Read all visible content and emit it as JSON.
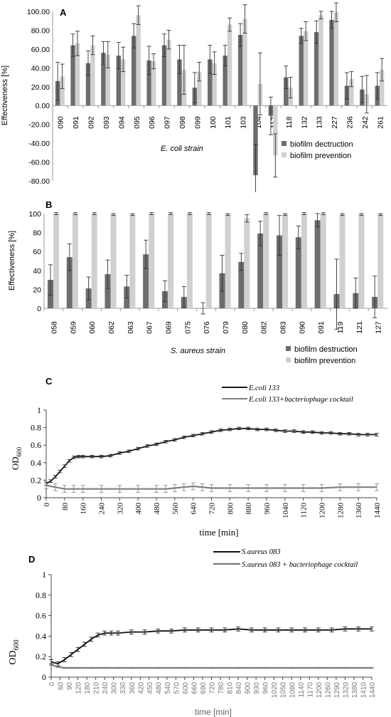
{
  "chart_data": [
    {
      "panel": "A",
      "type": "bar",
      "ylabel": "Effectiveness [%]",
      "xlabel": "E. coli  strain",
      "ylim": [
        -80,
        100
      ],
      "yticks": [
        "100.00",
        "80.00",
        "60.00",
        "40.00",
        "20.00",
        "0.00",
        "-20.00",
        "-40.00",
        "-60.00",
        "-80.00"
      ],
      "categories": [
        "090",
        "091",
        "092",
        "093",
        "094",
        "095",
        "096",
        "097",
        "098",
        "099",
        "100",
        "101",
        "103",
        "104",
        "117",
        "118",
        "132",
        "133",
        "227",
        "236",
        "242",
        "261"
      ],
      "series": [
        {
          "name": "biofilm dectruction",
          "color": "#6d6d6d",
          "values": [
            26,
            64,
            45,
            56,
            53,
            74,
            48,
            64,
            49,
            19,
            49,
            53,
            75,
            -74,
            -11,
            30,
            74,
            78,
            91,
            21,
            17,
            21
          ],
          "errors": [
            20,
            12,
            13,
            12,
            14,
            13,
            15,
            12,
            15,
            16,
            15,
            11,
            12,
            33,
            20,
            12,
            8,
            12,
            9,
            14,
            14,
            14
          ]
        },
        {
          "name": "biofilm prevention",
          "color": "#d0d0d0",
          "values": [
            31,
            66,
            64,
            54,
            49,
            96,
            47,
            70,
            38,
            36,
            45,
            86,
            92,
            23,
            -53,
            19,
            79,
            96,
            99,
            28,
            12,
            38
          ],
          "errors": [
            13,
            13,
            10,
            14,
            13,
            10,
            8,
            10,
            26,
            10,
            12,
            7,
            15,
            33,
            23,
            11,
            10,
            4,
            10,
            8,
            20,
            12
          ]
        }
      ]
    },
    {
      "panel": "B",
      "type": "bar",
      "ylabel": "Effectiveness [%]",
      "xlabel": "S. aureus strain",
      "ylim": [
        0,
        100
      ],
      "yticks": [
        "100",
        "80",
        "60",
        "40",
        "20",
        "0"
      ],
      "categories": [
        "058",
        "059",
        "060",
        "062",
        "063",
        "067",
        "069",
        "075",
        "076",
        "079",
        "080",
        "082",
        "083",
        "090",
        "091",
        "119",
        "121",
        "127"
      ],
      "series": [
        {
          "name": "biofilm destruction",
          "color": "#6d6d6d",
          "values": [
            30,
            54,
            21,
            36,
            23,
            57,
            18,
            12,
            0,
            37,
            49,
            79,
            77,
            75,
            93,
            15,
            16,
            12
          ],
          "errors": [
            16,
            14,
            12,
            15,
            12,
            15,
            11,
            11,
            6,
            19,
            9,
            13,
            21,
            12,
            7,
            37,
            16,
            22
          ]
        },
        {
          "name": "biofilm prevention",
          "color": "#d0d0d0",
          "values": [
            100,
            100,
            100,
            99,
            99,
            100,
            100,
            100,
            100,
            99,
            95,
            100,
            99,
            100,
            100,
            99,
            99,
            99
          ],
          "errors": [
            1,
            1,
            1,
            1,
            1,
            1,
            1,
            1,
            1,
            1,
            4,
            1,
            1,
            1,
            1,
            1,
            1,
            1
          ]
        }
      ]
    },
    {
      "panel": "C",
      "type": "line",
      "ylabel": "OD",
      "ylabel_sub": "600",
      "xlabel": "time [min]",
      "xlim": [
        0,
        1440
      ],
      "ylim": [
        0,
        1
      ],
      "xticks": [
        "0",
        "80",
        "160",
        "240",
        "320",
        "400",
        "480",
        "560",
        "640",
        "720",
        "800",
        "880",
        "960",
        "1040",
        "1120",
        "1200",
        "1280",
        "1360",
        "1440"
      ],
      "yticks": [
        "1",
        "0.8",
        "0.6",
        "0.4",
        "0.2",
        "0"
      ],
      "series": [
        {
          "name": "E.coli 133",
          "color": "#1a1a1a",
          "x": [
            0,
            20,
            40,
            60,
            80,
            100,
            120,
            140,
            160,
            200,
            240,
            280,
            320,
            360,
            400,
            440,
            480,
            520,
            560,
            600,
            640,
            680,
            720,
            760,
            800,
            840,
            880,
            920,
            960,
            1000,
            1040,
            1080,
            1120,
            1160,
            1200,
            1240,
            1280,
            1320,
            1360,
            1400,
            1440
          ],
          "y": [
            0.16,
            0.19,
            0.24,
            0.3,
            0.36,
            0.42,
            0.46,
            0.47,
            0.47,
            0.47,
            0.47,
            0.48,
            0.51,
            0.53,
            0.56,
            0.59,
            0.61,
            0.64,
            0.66,
            0.69,
            0.71,
            0.73,
            0.75,
            0.77,
            0.78,
            0.79,
            0.79,
            0.78,
            0.78,
            0.77,
            0.76,
            0.76,
            0.75,
            0.75,
            0.74,
            0.74,
            0.73,
            0.73,
            0.72,
            0.72,
            0.72
          ],
          "err": 0.015
        },
        {
          "name": "E.coli 133+bacteriophage cocktail",
          "color": "#808080",
          "x": [
            0,
            40,
            80,
            120,
            160,
            240,
            320,
            400,
            480,
            520,
            560,
            600,
            640,
            680,
            720,
            800,
            880,
            960,
            1040,
            1120,
            1200,
            1280,
            1360,
            1440
          ],
          "y": [
            0.14,
            0.12,
            0.1,
            0.1,
            0.1,
            0.1,
            0.1,
            0.1,
            0.1,
            0.1,
            0.11,
            0.12,
            0.13,
            0.12,
            0.11,
            0.11,
            0.11,
            0.11,
            0.11,
            0.11,
            0.11,
            0.12,
            0.12,
            0.12
          ],
          "err": 0.04
        }
      ]
    },
    {
      "panel": "D",
      "type": "line",
      "ylabel": "OD",
      "ylabel_sub": "600",
      "xlabel": "time [min]",
      "xlim": [
        0,
        1440
      ],
      "ylim": [
        0,
        1
      ],
      "xticks": [
        "0",
        "60",
        "90",
        "120",
        "180",
        "210",
        "240",
        "300",
        "330",
        "360",
        "420",
        "450",
        "480",
        "540",
        "570",
        "600",
        "660",
        "690",
        "720",
        "780",
        "810",
        "840",
        "900",
        "930",
        "960",
        "1020",
        "1050",
        "1080",
        "1140",
        "1170",
        "1200",
        "1260",
        "1290",
        "1320",
        "1380",
        "1410",
        "1440"
      ],
      "yticks": [
        "1",
        "0.8",
        "0.6",
        "0.4",
        "0.2",
        "0"
      ],
      "series": [
        {
          "name": "S.aureus 083",
          "color": "#111111",
          "x": [
            0,
            30,
            60,
            90,
            120,
            150,
            180,
            210,
            240,
            270,
            300,
            360,
            420,
            480,
            540,
            600,
            660,
            720,
            780,
            840,
            900,
            960,
            1020,
            1080,
            1140,
            1200,
            1260,
            1320,
            1380,
            1440
          ],
          "y": [
            0.15,
            0.13,
            0.17,
            0.22,
            0.27,
            0.32,
            0.37,
            0.41,
            0.43,
            0.43,
            0.43,
            0.44,
            0.44,
            0.45,
            0.45,
            0.46,
            0.46,
            0.46,
            0.46,
            0.47,
            0.46,
            0.46,
            0.46,
            0.46,
            0.46,
            0.46,
            0.46,
            0.47,
            0.47,
            0.47
          ],
          "err": 0.02
        },
        {
          "name": "S.aureus 083 + bacteriophage cocktail",
          "color": "#7a7a7a",
          "x": [
            0,
            30,
            60,
            90,
            120,
            180,
            240,
            300,
            360,
            480,
            600,
            720,
            840,
            960,
            1080,
            1200,
            1320,
            1440
          ],
          "y": [
            0.12,
            0.1,
            0.09,
            0.09,
            0.09,
            0.09,
            0.09,
            0.09,
            0.09,
            0.09,
            0.09,
            0.09,
            0.09,
            0.09,
            0.09,
            0.09,
            0.09,
            0.09
          ],
          "err": 0.005
        }
      ]
    }
  ]
}
